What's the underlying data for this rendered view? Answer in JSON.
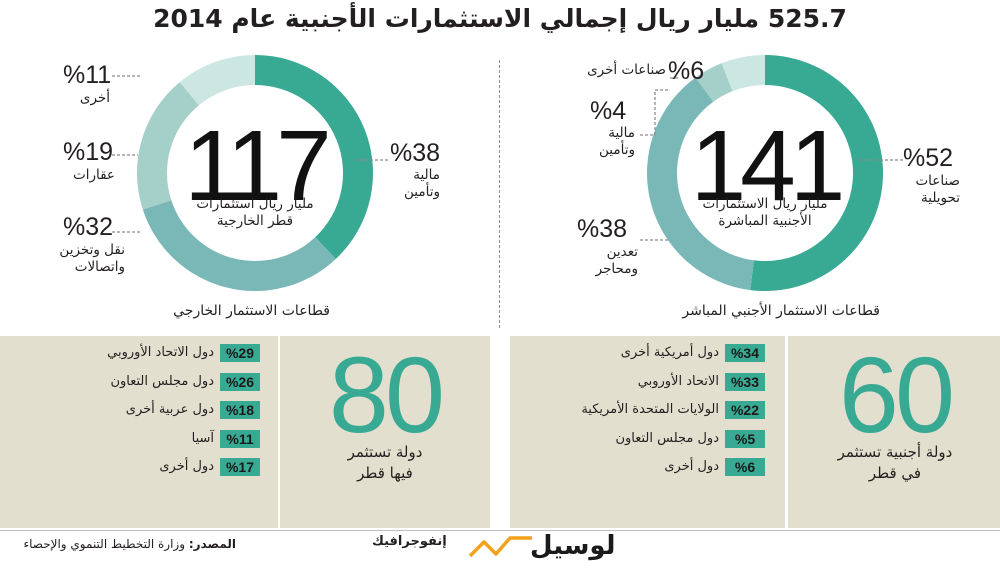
{
  "title": "525.7 مليار ريال إجمالي الاستثمارات الأجنبية عام 2014",
  "chart_data": [
    {
      "type": "pie",
      "center_value": "141",
      "center_caption": [
        "مليار ريال الاستثمارات",
        "الأجنبية المباشرة"
      ],
      "section_title": "قطاعات الاستثمار الأجنبي المباشر",
      "slices": [
        {
          "label": "صناعات تحويلية",
          "label_lines": [
            "صناعات",
            "تحويلية"
          ],
          "value": 52,
          "value_text": "%52",
          "color": "#38a993"
        },
        {
          "label": "تعدين ومحاجر",
          "label_lines": [
            "تعدين",
            "ومحاجر"
          ],
          "value": 38,
          "value_text": "%38",
          "color": "#7ab8b7"
        },
        {
          "label": "مالية وتأمين",
          "label_lines": [
            "مالية",
            "وتأمين"
          ],
          "value": 4,
          "value_text": "%4",
          "color": "#a5cfc9"
        },
        {
          "label": "صناعات أخرى",
          "label_lines": [
            "صناعات أخرى"
          ],
          "value": 6,
          "value_text": "%6",
          "color": "#cce6e1"
        }
      ]
    },
    {
      "type": "pie",
      "center_value": "117",
      "center_caption": [
        "مليار ريال استثمارات",
        "قطر الخارجية"
      ],
      "section_title": "قطاعات الاستثمار الخارجي",
      "slices": [
        {
          "label": "مالية وتأمين",
          "label_lines": [
            "مالية",
            "وتأمين"
          ],
          "value": 38,
          "value_text": "%38",
          "color": "#38a993"
        },
        {
          "label": "نقل وتخزين واتصالات",
          "label_lines": [
            "نقل وتخزين",
            "واتصالات"
          ],
          "value": 32,
          "value_text": "%32",
          "color": "#7ab8b7"
        },
        {
          "label": "عقارات",
          "label_lines": [
            "عقارات"
          ],
          "value": 19,
          "value_text": "%19",
          "color": "#a5cfc9"
        },
        {
          "label": "أخرى",
          "label_lines": [
            "أخرى"
          ],
          "value": 11,
          "value_text": "%11",
          "color": "#cce6e1"
        }
      ]
    },
    {
      "type": "table",
      "headline_value": "60",
      "headline_caption": [
        "دولة أجنبية تستثمر",
        "في قطر"
      ],
      "rows": [
        {
          "label": "دول أمريكية أخرى",
          "value": 34,
          "value_text": "%34"
        },
        {
          "label": "الاتحاد الأوروبي",
          "value": 33,
          "value_text": "%33"
        },
        {
          "label": "الولايات المتحدة الأمريكية",
          "value": 22,
          "value_text": "%22"
        },
        {
          "label": "دول مجلس التعاون",
          "value": 5,
          "value_text": "%5"
        },
        {
          "label": "دول أخرى",
          "value": 6,
          "value_text": "%6"
        }
      ]
    },
    {
      "type": "table",
      "headline_value": "80",
      "headline_caption": [
        "دولة تستثمر",
        "فيها قطر"
      ],
      "rows": [
        {
          "label": "دول الاتحاد الأوروبي",
          "value": 29,
          "value_text": "%29"
        },
        {
          "label": "دول مجلس التعاون",
          "value": 26,
          "value_text": "%26"
        },
        {
          "label": "دول عربية أخرى",
          "value": 18,
          "value_text": "%18"
        },
        {
          "label": "آسيا",
          "value": 11,
          "value_text": "%11"
        },
        {
          "label": "دول أخرى",
          "value": 17,
          "value_text": "%17"
        }
      ]
    }
  ],
  "footer": {
    "source_label": "المصدر:",
    "source_text": "وزارة التخطيط التنموي والإحصاء",
    "infographic_label": "إنفوجرافيك",
    "brand": "لوسيل"
  }
}
